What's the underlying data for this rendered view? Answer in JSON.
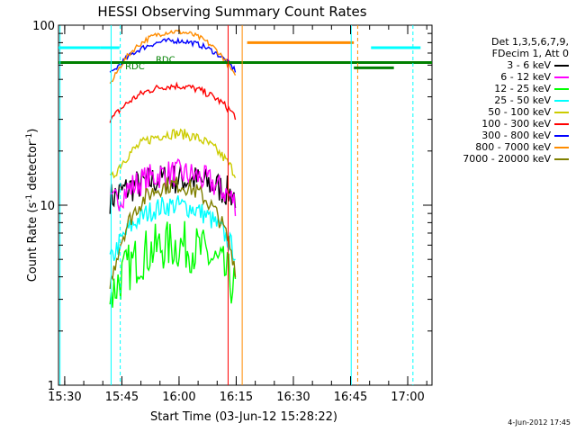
{
  "chart_data": {
    "type": "line",
    "title": "HESSI Observing Summary Count Rates",
    "xlabel": "Start Time (03-Jun-12 15:28:22)",
    "ylabel_main": "Count Rate (s",
    "ylabel_sup": "-1",
    "ylabel_mid": " detector",
    "ylabel_end": ")",
    "y_scale": "log",
    "ylim": [
      1,
      100
    ],
    "xlim_minutes": [
      0,
      98
    ],
    "y_ticks": [
      {
        "v": 1,
        "label": "1"
      },
      {
        "v": 10,
        "label": "10"
      },
      {
        "v": 100,
        "label": "100"
      }
    ],
    "x_ticks": [
      {
        "label": "15:30",
        "m": 1.63
      },
      {
        "label": "15:45",
        "m": 16.63
      },
      {
        "label": "16:00",
        "m": 31.63
      },
      {
        "label": "16:15",
        "m": 46.63
      },
      {
        "label": "16:30",
        "m": 61.63
      },
      {
        "label": "16:45",
        "m": 76.63
      },
      {
        "label": "17:00",
        "m": 91.63
      }
    ],
    "legend_header": [
      "Det 1,3,5,6,7,9,",
      "FDecim 1, Att 0"
    ],
    "series": [
      {
        "name": "3 - 6 keV",
        "color": "#000000",
        "peak": 14,
        "base": 11,
        "noise": 0.18
      },
      {
        "name": "6 - 12 keV",
        "color": "#ff00ff",
        "peak": 15,
        "base": 10,
        "noise": 0.16
      },
      {
        "name": "12 - 25 keV",
        "color": "#00ff00",
        "peak": 6,
        "base": 3.2,
        "noise": 0.28
      },
      {
        "name": "25 - 50 keV",
        "color": "#00ffff",
        "peak": 10,
        "base": 5,
        "noise": 0.12
      },
      {
        "name": "50 - 100 keV",
        "color": "#cccc00",
        "peak": 25,
        "base": 14,
        "noise": 0.06
      },
      {
        "name": "100 - 300 keV",
        "color": "#ff0000",
        "peak": 46,
        "base": 30,
        "noise": 0.04
      },
      {
        "name": "300 - 800 keV",
        "color": "#0000ff",
        "peak": 82,
        "base": 54,
        "noise": 0.03
      },
      {
        "name": "800 - 7000 keV",
        "color": "#ff8c00",
        "peak": 92,
        "base": 48,
        "noise": 0.03
      },
      {
        "name": "7000 - 20000 keV",
        "color": "#808000",
        "peak": 13,
        "base": 3.8,
        "noise": 0.1
      }
    ],
    "segment": {
      "start_m": 13.5,
      "end_m": 46.5
    },
    "flags": {
      "green_level": 62,
      "cyan_level": 75,
      "orange_level": 80,
      "green_low_level": 58
    },
    "annotations": [
      {
        "text": "RDC",
        "m": 17.5,
        "v": 57
      },
      {
        "text": "RDC",
        "m": 25.5,
        "v": 62
      }
    ]
  },
  "footer": {
    "date_stamp": "4-Jun-2012 17:45"
  }
}
